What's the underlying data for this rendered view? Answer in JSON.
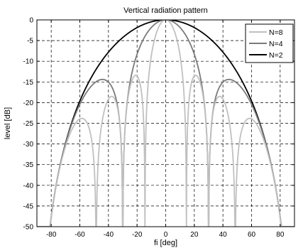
{
  "chart_data": {
    "type": "line",
    "title": "Vertical radiation pattern",
    "xlabel": "fi [deg]",
    "ylabel": "level [dB]",
    "xlim": [
      -90,
      90
    ],
    "ylim": [
      -50,
      0
    ],
    "xticks": [
      -80,
      -60,
      -40,
      -20,
      0,
      20,
      40,
      60,
      80
    ],
    "yticks": [
      0,
      -5,
      -10,
      -15,
      -20,
      -25,
      -30,
      -35,
      -40,
      -45,
      -50
    ],
    "grid": true,
    "grid_style": "dashed",
    "legend_position": "top-right",
    "series": [
      {
        "name": "N=8",
        "color": "#c0c0c0",
        "elements": 8
      },
      {
        "name": "N=4",
        "color": "#7a7a7a",
        "elements": 4
      },
      {
        "name": "N=2",
        "color": "#000000",
        "elements": 2
      }
    ]
  }
}
